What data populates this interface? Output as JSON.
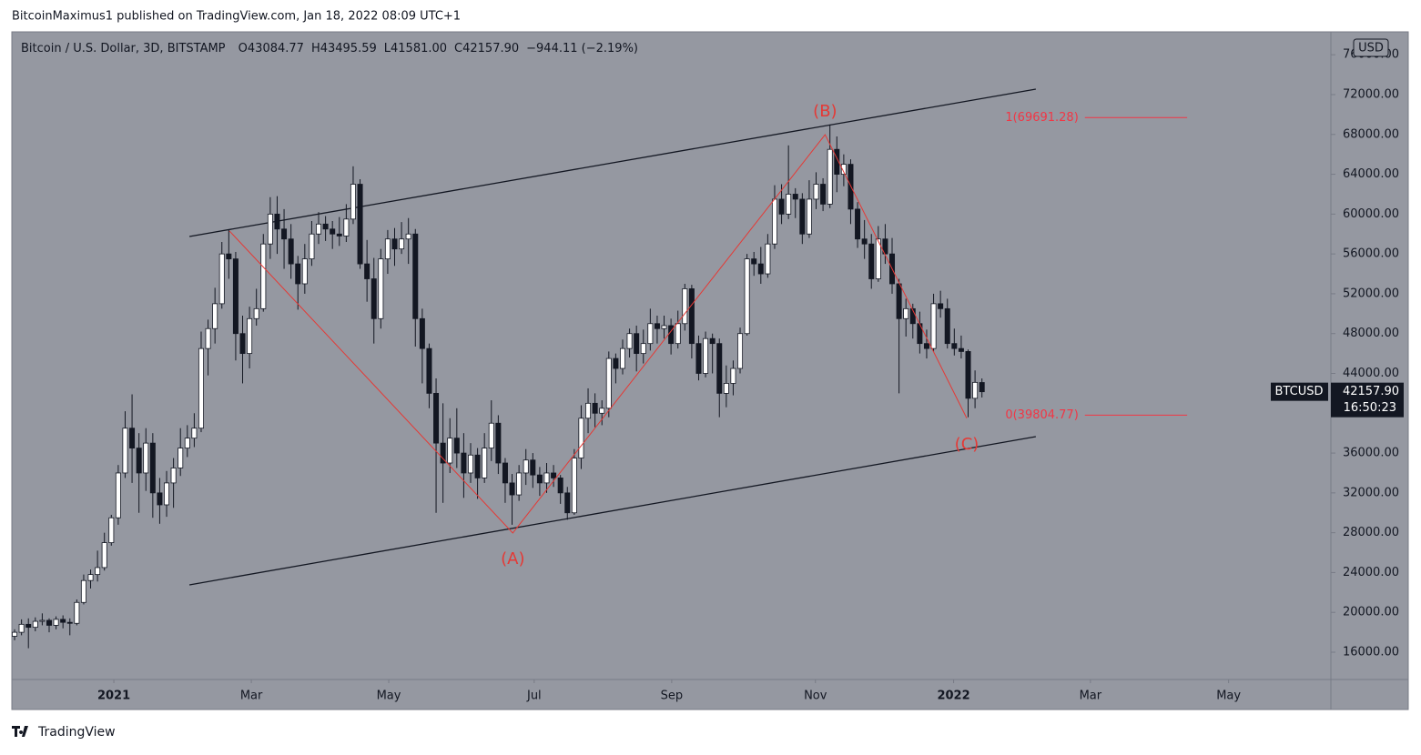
{
  "chart_data": {
    "type": "candlestick",
    "published": "BitcoinMaximus1 published on TradingView.com, Jan 18, 2022 08:09 UTC+1",
    "legend_line": {
      "symbol": "Bitcoin / U.S. Dollar, 3D, BITSTAMP",
      "items": [
        {
          "key": "O",
          "text": "43084.77"
        },
        {
          "key": "H",
          "text": "43495.59"
        },
        {
          "key": "L",
          "text": "41581.00"
        },
        {
          "key": "C",
          "text": "42157.90"
        }
      ],
      "change": "−944.11 (−2.19%)"
    },
    "currency": "USD",
    "ticker": "BTCUSD",
    "last_price": "42157.90",
    "countdown": "16:50:23",
    "footer": "TradingView",
    "up_color": "#ffffff",
    "down_color": "#131722",
    "wick_color": "#131722",
    "background": "#9598a1",
    "grid": false,
    "xlim": [
      -0.4,
      190.5
    ],
    "xticks": [
      {
        "value": 14.36,
        "label": "2021"
      },
      {
        "value": 34.26,
        "label": "Mar"
      },
      {
        "value": 54.15,
        "label": "May"
      },
      {
        "value": 75.2,
        "label": "Jul"
      },
      {
        "value": 95.1,
        "label": "Sep"
      },
      {
        "value": 115.9,
        "label": "Nov"
      },
      {
        "value": 135.9,
        "label": "2022"
      },
      {
        "value": 155.7,
        "label": "Mar"
      },
      {
        "value": 175.7,
        "label": "May"
      }
    ],
    "ylim": [
      13259,
      78304
    ],
    "yticks": [
      {
        "value": 16000,
        "label": "16000.00"
      },
      {
        "value": 20000,
        "label": "20000.00"
      },
      {
        "value": 24000,
        "label": "24000.00"
      },
      {
        "value": 28000,
        "label": "28000.00"
      },
      {
        "value": 32000,
        "label": "32000.00"
      },
      {
        "value": 36000,
        "label": "36000.00"
      },
      {
        "value": 40000,
        "label": "40000.00"
      },
      {
        "value": 44000,
        "label": "44000.00"
      },
      {
        "value": 48000,
        "label": "48000.00"
      },
      {
        "value": 52000,
        "label": "52000.00"
      },
      {
        "value": 56000,
        "label": "56000.00"
      },
      {
        "value": 60000,
        "label": "60000.00"
      },
      {
        "value": 64000,
        "label": "64000.00"
      },
      {
        "value": 68000,
        "label": "68000.00"
      },
      {
        "value": 72000,
        "label": "72000.00"
      },
      {
        "value": 76000,
        "label": "76000.00"
      }
    ],
    "open": [
      17600,
      18000,
      18800,
      18500,
      19100,
      19200,
      18700,
      19300,
      19000,
      18900,
      21000,
      23200,
      23800,
      24500,
      27000,
      29500,
      34000,
      38500,
      36500,
      34000,
      37000,
      32000,
      30800,
      33000,
      34500,
      36500,
      37500,
      38500,
      46500,
      48500,
      51000,
      56000,
      55500,
      48000,
      46000,
      49500,
      50500,
      57000,
      60000,
      58500,
      57500,
      55000,
      53000,
      55500,
      58000,
      59000,
      58500,
      58000,
      57800,
      59500,
      63000,
      55000,
      53500,
      49500,
      55500,
      57500,
      56500,
      57500,
      58000,
      49500,
      46500,
      42000,
      37000,
      35000,
      37500,
      36000,
      34000,
      35800,
      33500,
      36500,
      39000,
      35000,
      33000,
      31800,
      34000,
      35300,
      33800,
      33000,
      34000,
      33500,
      32000,
      30000,
      35500,
      39500,
      41000,
      40000,
      40500,
      45500,
      44500,
      46500,
      48000,
      46000,
      47000,
      49000,
      48500,
      48800,
      47000,
      49000,
      52500,
      47000,
      44000,
      47500,
      47000,
      42000,
      43000,
      44500,
      48000,
      55500,
      55000,
      54000,
      57000,
      61500,
      60000,
      62000,
      61500,
      58000,
      61500,
      63000,
      61000,
      66500,
      64000,
      65000,
      60500,
      57500,
      57000,
      53500,
      57500,
      56000,
      53000,
      49500,
      50500,
      49000,
      47000,
      46500,
      51000,
      50500,
      47000,
      46500,
      46200,
      41500,
      43084.77
    ],
    "high": [
      18300,
      19300,
      19400,
      19500,
      19900,
      19400,
      19600,
      19700,
      19400,
      21300,
      23800,
      24300,
      26200,
      28000,
      29800,
      34800,
      40200,
      41900,
      38000,
      38500,
      38000,
      33500,
      34200,
      35500,
      38500,
      38800,
      40000,
      48200,
      49400,
      52600,
      57200,
      58400,
      56200,
      49800,
      50700,
      52500,
      58000,
      61700,
      61800,
      60500,
      59000,
      55800,
      57000,
      59300,
      60200,
      59800,
      59300,
      59700,
      61000,
      64800,
      63500,
      57400,
      55600,
      56500,
      58400,
      58600,
      59200,
      59600,
      58500,
      50500,
      47000,
      43500,
      41000,
      39500,
      40500,
      38000,
      37000,
      36500,
      38000,
      41300,
      39800,
      35500,
      33900,
      34800,
      36400,
      36000,
      34600,
      35000,
      34800,
      33800,
      32600,
      36400,
      40800,
      42500,
      42000,
      41300,
      46200,
      46000,
      47400,
      48500,
      48800,
      48400,
      50500,
      49800,
      49800,
      49500,
      50300,
      53000,
      52900,
      47800,
      48200,
      48000,
      47500,
      44800,
      45300,
      48600,
      56000,
      56200,
      56700,
      58000,
      62900,
      63000,
      66900,
      62600,
      62100,
      63400,
      64200,
      63600,
      69000,
      67800,
      66000,
      65500,
      61200,
      59400,
      58000,
      58800,
      59000,
      57600,
      53500,
      51500,
      51000,
      50200,
      48400,
      52000,
      52300,
      51500,
      48500,
      47800,
      46400,
      44300,
      43495.59
    ],
    "low": [
      17200,
      17700,
      16400,
      18100,
      18700,
      18000,
      18300,
      18400,
      17700,
      18700,
      20800,
      22400,
      23100,
      24200,
      26700,
      28800,
      33500,
      33000,
      30000,
      32200,
      29500,
      28900,
      29600,
      30500,
      33700,
      35600,
      36600,
      38100,
      43800,
      47000,
      50500,
      53500,
      45300,
      43000,
      44500,
      48800,
      50200,
      55500,
      56000,
      54500,
      53500,
      50400,
      52000,
      54800,
      57000,
      57300,
      56500,
      56800,
      57200,
      59000,
      54500,
      51200,
      47000,
      48500,
      54000,
      54800,
      56000,
      55000,
      46700,
      43000,
      40500,
      30000,
      31000,
      34000,
      34500,
      31500,
      33000,
      31400,
      33000,
      35200,
      33900,
      31000,
      28800,
      31200,
      32800,
      32500,
      31700,
      32000,
      32600,
      30900,
      29300,
      29800,
      34400,
      38000,
      38600,
      38800,
      39600,
      43000,
      43900,
      45600,
      44200,
      45000,
      46300,
      47000,
      47500,
      45900,
      46500,
      48300,
      45500,
      43300,
      43600,
      44000,
      39600,
      40600,
      41800,
      44000,
      47800,
      53800,
      53000,
      53600,
      56500,
      59000,
      59500,
      59600,
      57000,
      57600,
      60500,
      60300,
      60600,
      62200,
      62800,
      59000,
      56600,
      55500,
      52500,
      53200,
      55000,
      52000,
      42000,
      47700,
      47500,
      46000,
      45500,
      46200,
      49600,
      46500,
      45800,
      45500,
      39600,
      40500,
      41581
    ],
    "close": [
      18000,
      18800,
      18500,
      19100,
      19200,
      18700,
      19300,
      19000,
      18900,
      21000,
      23200,
      23800,
      24500,
      27000,
      29500,
      34000,
      38500,
      36500,
      34000,
      37000,
      32000,
      30800,
      33000,
      34500,
      36500,
      37500,
      38500,
      46500,
      48500,
      51000,
      56000,
      55500,
      48000,
      46000,
      49500,
      50500,
      57000,
      60000,
      58500,
      57500,
      55000,
      53000,
      55500,
      58000,
      59000,
      58500,
      58000,
      57800,
      59500,
      63000,
      55000,
      53500,
      49500,
      55500,
      57500,
      56500,
      57500,
      58000,
      49500,
      46500,
      42000,
      37000,
      35000,
      37500,
      36000,
      34000,
      35800,
      33500,
      36500,
      39000,
      35000,
      33000,
      31800,
      34000,
      35300,
      33800,
      33000,
      34000,
      33500,
      32000,
      30000,
      35500,
      39500,
      41000,
      40000,
      40500,
      45500,
      44500,
      46500,
      48000,
      46000,
      47000,
      49000,
      48500,
      48800,
      47000,
      49000,
      52500,
      47000,
      44000,
      47500,
      47000,
      42000,
      43000,
      44500,
      48000,
      55500,
      55000,
      54000,
      57000,
      61500,
      60000,
      62000,
      61500,
      58000,
      61500,
      63000,
      61000,
      66500,
      64000,
      65000,
      60500,
      57500,
      57000,
      53500,
      57500,
      56000,
      53000,
      49500,
      50500,
      49000,
      47000,
      46500,
      51000,
      50500,
      47000,
      46500,
      46200,
      41500,
      43100,
      42157.9
    ],
    "channel_color": "#131722",
    "channel": [
      {
        "x": [
          25.3,
          147.8
        ],
        "y": [
          57750,
          72550
        ]
      },
      {
        "x": [
          25.3,
          147.8
        ],
        "y": [
          22760,
          37650
        ]
      }
    ],
    "wave_color": "#e53935",
    "wave": {
      "x": [
        31.1,
        72.1,
        117.3,
        137.8
      ],
      "y": [
        58300,
        27970,
        67980,
        39500
      ],
      "labels": [
        null,
        "(A)",
        "(B)",
        "(C)"
      ]
    },
    "fib_color": "#f23645",
    "fib": {
      "start": 154.9,
      "end": 169.7,
      "levels": [
        {
          "value": 69691.28,
          "label": "1(69691.28)"
        },
        {
          "value": 39804.77,
          "label": "0(39804.77)"
        }
      ]
    }
  }
}
